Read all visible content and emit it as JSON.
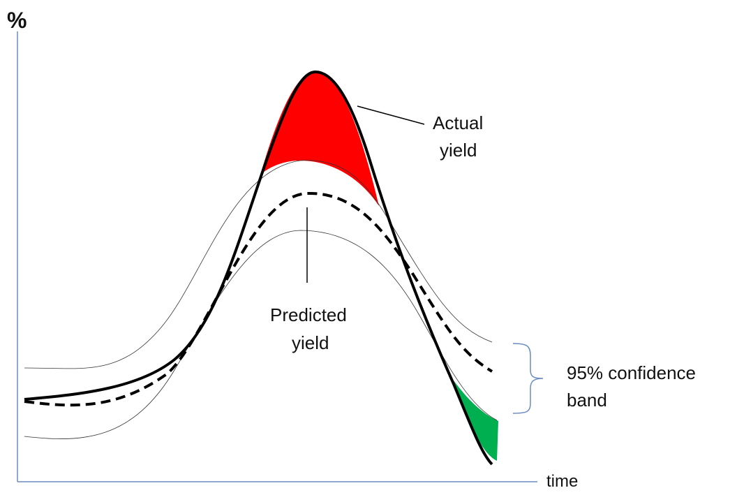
{
  "axes": {
    "y_label": "%",
    "x_label": "time"
  },
  "annotations": {
    "actual": {
      "lines": [
        "Actual",
        "yield"
      ]
    },
    "predicted": {
      "lines": [
        "Predicted",
        "yield"
      ]
    },
    "band": {
      "lines": [
        "95% confidence",
        "band"
      ]
    }
  }
}
